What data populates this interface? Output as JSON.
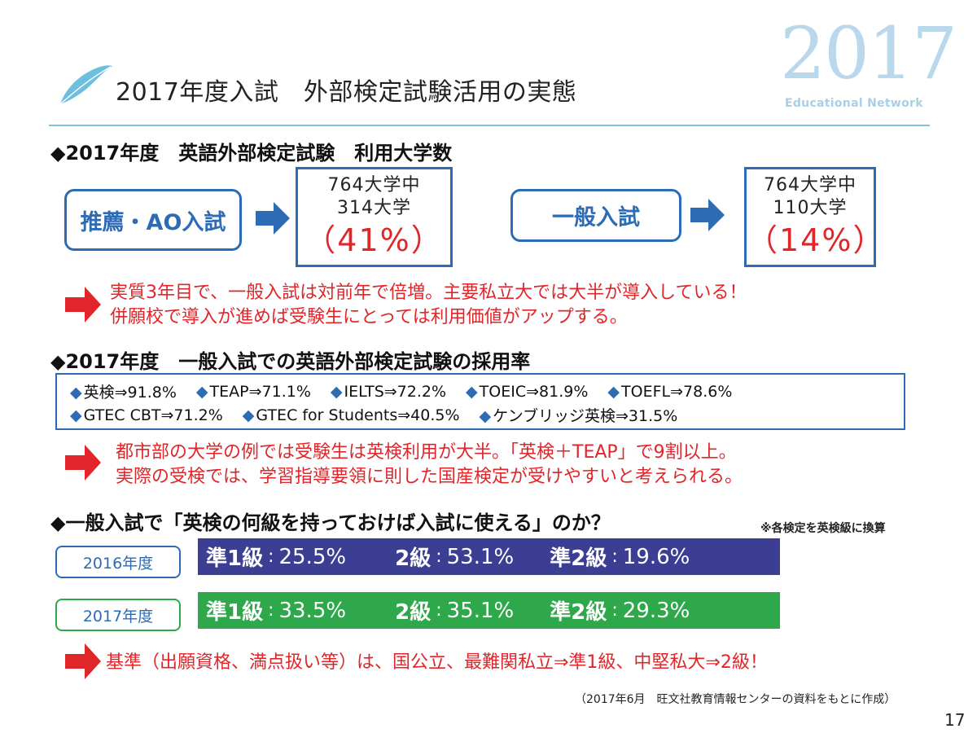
{
  "header": {
    "title": "2017年度入試　外部検定試験活用の実態",
    "logo_year": "2017",
    "logo_subtitle": "Educational Network"
  },
  "section1": {
    "heading": "◆2017年度　英語外部検定試験　利用大学数",
    "recommendation": {
      "label": "推薦・AO入試",
      "line1": "764大学中",
      "line2": "314大学",
      "percent": "（41%）"
    },
    "general": {
      "label": "一般入試",
      "line1": "764大学中",
      "line2": "110大学",
      "percent": "（14%）"
    },
    "comment_line1": "実質3年目で、一般入試は対前年で倍増。主要私立大では大半が導入している！",
    "comment_line2": "併願校で導入が進めば受験生にとっては利用価値がアップする。"
  },
  "section2": {
    "heading": "◆2017年度　一般入試での英語外部検定試験の採用率",
    "rates_row1": [
      "英検⇒91.8%",
      "TEAP⇒71.1%",
      "IELTS⇒72.2%",
      "TOEIC⇒81.9%",
      "TOEFL⇒78.6%"
    ],
    "rates_row2": [
      "GTEC CBT⇒71.2%",
      "GTEC for Students⇒40.5%",
      "ケンブリッジ英検⇒31.5%"
    ],
    "comment_line1": "都市部の大学の例では受験生は英検利用が大半。「英検＋TEAP」で9割以上。",
    "comment_line2": "実際の受検では、学習指導要領に則した国産検定が受けやすいと考えられる。"
  },
  "section3": {
    "heading": "◆一般入試で「英検の何級を持っておけば入試に使える」のか？",
    "note": "※各検定を英検級に換算",
    "years": [
      {
        "label": "2016年度",
        "color": "#3b3e93",
        "grades": [
          {
            "grade": "準1級",
            "value": "25.5%"
          },
          {
            "grade": "2級",
            "value": "53.1%"
          },
          {
            "grade": "準2級",
            "value": "19.6%"
          }
        ]
      },
      {
        "label": "2017年度",
        "color": "#2ea84a",
        "grades": [
          {
            "grade": "準1級",
            "value": "33.5%"
          },
          {
            "grade": "2級",
            "value": "35.1%"
          },
          {
            "grade": "準2級",
            "value": "29.3%"
          }
        ]
      }
    ],
    "comment": "基準（出願資格、満点扱い等）は、国公立、最難関私立⇒準1級、中堅私大⇒2級！"
  },
  "footer": {
    "source": "（2017年6月　旺文社教育情報センターの資料をもとに作成）",
    "page_number": "17"
  },
  "colors": {
    "accent_blue": "#2e6bb5",
    "alert_red": "#e0262a",
    "feather": "#6cc0dd",
    "rule": "#7fc3d9"
  },
  "icons": [
    "feather-icon",
    "right-arrow-icon",
    "diamond-bullet-icon"
  ]
}
